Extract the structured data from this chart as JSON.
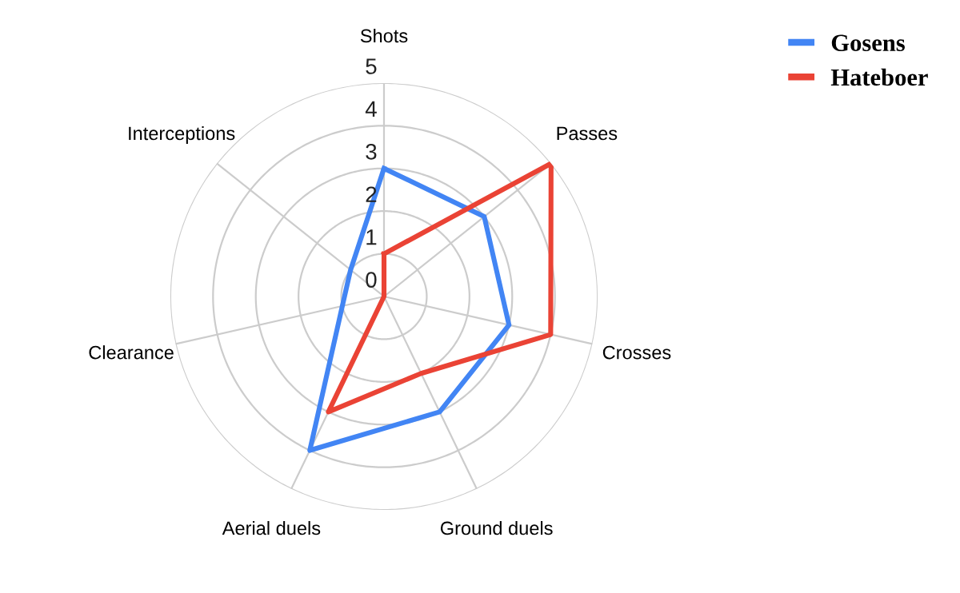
{
  "chart_data": {
    "type": "radar",
    "categories": [
      "Shots",
      "Passes",
      "Crosses",
      "Ground duels",
      "Aerial duels",
      "Clearance",
      "Interceptions"
    ],
    "series": [
      {
        "name": "Gosens",
        "color": "#4285f4",
        "values": [
          3,
          3,
          3,
          3,
          4,
          1,
          1
        ]
      },
      {
        "name": "Hateboer",
        "color": "#ea4335",
        "values": [
          1,
          5,
          4,
          2,
          3,
          0,
          0
        ]
      }
    ],
    "ylim": [
      0,
      5
    ],
    "yticks": [
      0,
      1,
      2,
      3,
      4,
      5
    ],
    "grid": true,
    "legend": "top right",
    "marker": "none",
    "line_style": "solid"
  }
}
